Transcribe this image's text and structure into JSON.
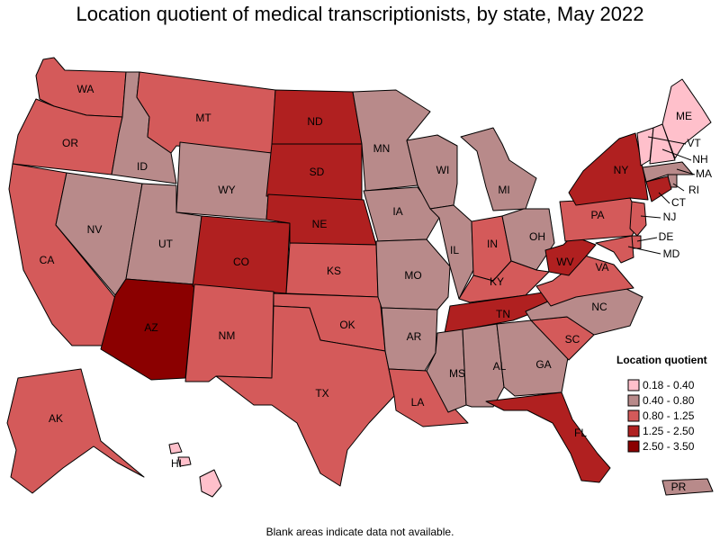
{
  "title": "Location quotient of medical transcriptionists, by state, May 2022",
  "footnote": "Blank areas indicate data not available.",
  "legend": {
    "title": "Location quotient",
    "bins": [
      {
        "label": "0.18 - 0.40",
        "color": "#ffc0cb"
      },
      {
        "label": "0.40 - 0.80",
        "color": "#b88a8a"
      },
      {
        "label": "0.80 - 1.25",
        "color": "#d45a5a"
      },
      {
        "label": "1.25 - 2.50",
        "color": "#b02020"
      },
      {
        "label": "2.50 - 3.50",
        "color": "#8b0000"
      }
    ]
  },
  "states": [
    {
      "abbr": "WA",
      "bin": 2
    },
    {
      "abbr": "OR",
      "bin": 2
    },
    {
      "abbr": "CA",
      "bin": 2
    },
    {
      "abbr": "ID",
      "bin": 1
    },
    {
      "abbr": "NV",
      "bin": 1
    },
    {
      "abbr": "MT",
      "bin": 2
    },
    {
      "abbr": "WY",
      "bin": 1
    },
    {
      "abbr": "UT",
      "bin": 1
    },
    {
      "abbr": "AZ",
      "bin": 4
    },
    {
      "abbr": "CO",
      "bin": 3
    },
    {
      "abbr": "NM",
      "bin": 2
    },
    {
      "abbr": "ND",
      "bin": 3
    },
    {
      "abbr": "SD",
      "bin": 3
    },
    {
      "abbr": "NE",
      "bin": 3
    },
    {
      "abbr": "KS",
      "bin": 2
    },
    {
      "abbr": "OK",
      "bin": 2
    },
    {
      "abbr": "TX",
      "bin": 2
    },
    {
      "abbr": "MN",
      "bin": 1
    },
    {
      "abbr": "IA",
      "bin": 1
    },
    {
      "abbr": "MO",
      "bin": 1
    },
    {
      "abbr": "AR",
      "bin": 1
    },
    {
      "abbr": "LA",
      "bin": 2
    },
    {
      "abbr": "WI",
      "bin": 1
    },
    {
      "abbr": "IL",
      "bin": 1
    },
    {
      "abbr": "MI",
      "bin": 1
    },
    {
      "abbr": "IN",
      "bin": 2
    },
    {
      "abbr": "OH",
      "bin": 1
    },
    {
      "abbr": "KY",
      "bin": 2
    },
    {
      "abbr": "TN",
      "bin": 3
    },
    {
      "abbr": "MS",
      "bin": 1
    },
    {
      "abbr": "AL",
      "bin": 1
    },
    {
      "abbr": "GA",
      "bin": 1
    },
    {
      "abbr": "FL",
      "bin": 3
    },
    {
      "abbr": "SC",
      "bin": 2
    },
    {
      "abbr": "NC",
      "bin": 1
    },
    {
      "abbr": "VA",
      "bin": 2
    },
    {
      "abbr": "WV",
      "bin": 3
    },
    {
      "abbr": "PA",
      "bin": 2
    },
    {
      "abbr": "NY",
      "bin": 3
    },
    {
      "abbr": "ME",
      "bin": 0
    },
    {
      "abbr": "VT",
      "bin": 0
    },
    {
      "abbr": "NH",
      "bin": 0
    },
    {
      "abbr": "MA",
      "bin": 1
    },
    {
      "abbr": "RI",
      "bin": 1
    },
    {
      "abbr": "CT",
      "bin": 3
    },
    {
      "abbr": "NJ",
      "bin": 2
    },
    {
      "abbr": "DE",
      "bin": 2
    },
    {
      "abbr": "MD",
      "bin": 2
    },
    {
      "abbr": "AK",
      "bin": 2
    },
    {
      "abbr": "HI",
      "bin": 0
    },
    {
      "abbr": "PR",
      "bin": 1
    }
  ]
}
